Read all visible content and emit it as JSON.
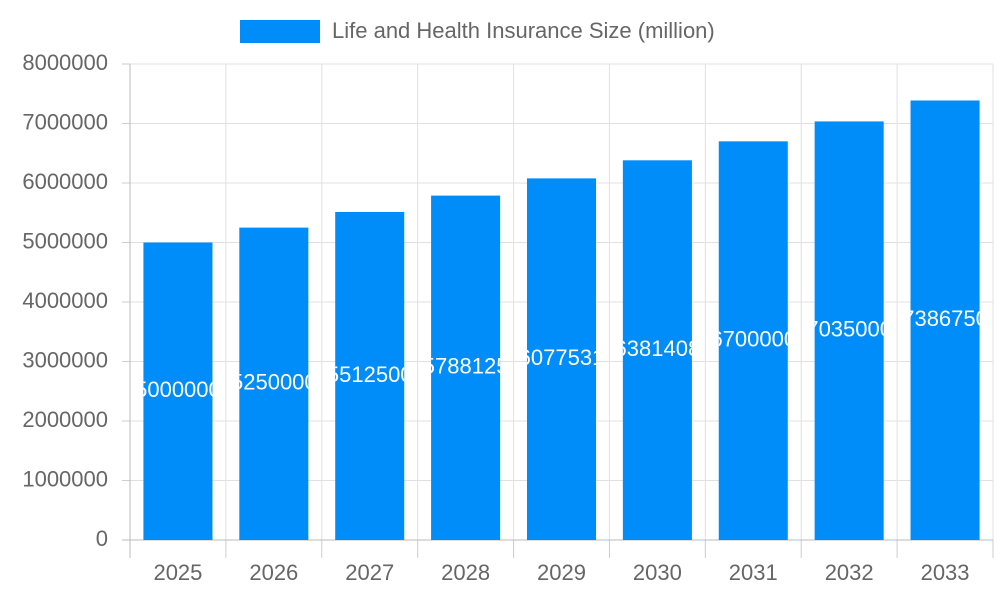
{
  "chart_data": {
    "type": "bar",
    "categories": [
      "2025",
      "2026",
      "2027",
      "2028",
      "2029",
      "2030",
      "2031",
      "2032",
      "2033"
    ],
    "series": [
      {
        "name": "Life and Health Insurance Size (million)",
        "color": "#008cf9",
        "values": [
          5000000,
          5250000,
          5512500,
          5788125,
          6077531,
          6381408,
          6700000,
          7035000,
          7386750
        ]
      }
    ],
    "ylim": [
      0,
      8000000
    ],
    "yticks": [
      0,
      1000000,
      2000000,
      3000000,
      4000000,
      5000000,
      6000000,
      7000000,
      8000000
    ],
    "grid": true,
    "legend": "top",
    "data_labels": true
  }
}
